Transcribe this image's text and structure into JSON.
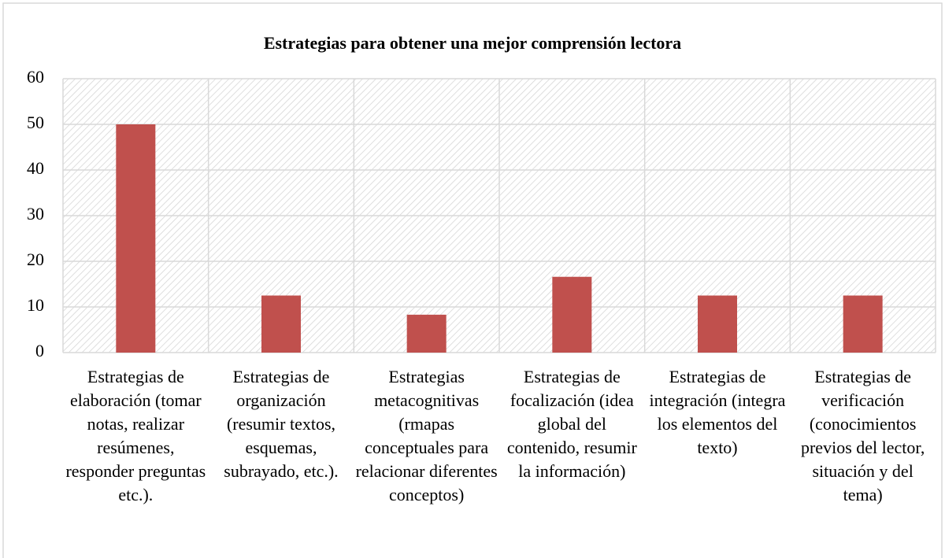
{
  "chart_data": {
    "type": "bar",
    "title": "Estrategias para obtener una mejor comprensión lectora",
    "categories": [
      "Estrategias de elaboración (tomar notas, realizar resúmenes, responder preguntas etc.).",
      "Estrategias de organización (resumir textos, esquemas, subrayado, etc.).",
      "Estrategias metacognitivas (rmapas conceptuales para relacionar diferentes conceptos)",
      "Estrategias de focalización (idea global del contenido, resumir la información)",
      "Estrategias de integración (integra los elementos del texto)",
      "Estrategias de verificación (conocimientos previos del lector, situación y del tema)"
    ],
    "values": [
      50,
      12.5,
      8.3,
      16.6,
      12.5,
      12.5
    ],
    "color": "#c0504d",
    "ylim": [
      0,
      60
    ],
    "yticks": [
      0,
      10,
      20,
      30,
      40,
      50,
      60
    ],
    "grid": true
  }
}
